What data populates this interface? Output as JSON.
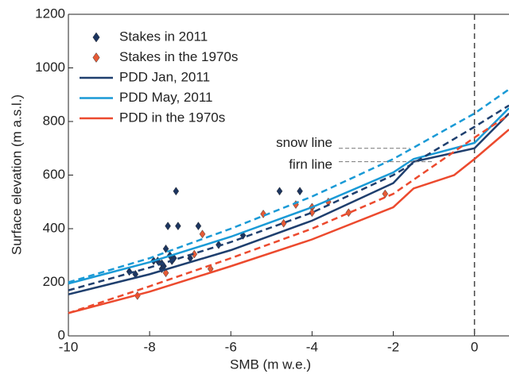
{
  "chart_data": {
    "type": "line",
    "xlabel": "SMB (m w.e.)",
    "ylabel": "Surface elevation (m a.s.l.)",
    "xlim": [
      -10,
      0.85
    ],
    "ylim": [
      0,
      1200
    ],
    "xticks": [
      -10,
      -8,
      -6,
      -4,
      -2,
      0
    ],
    "yticks": [
      0,
      200,
      400,
      600,
      800,
      1000,
      1200
    ],
    "vline": 0,
    "legend": "top-left",
    "series": [
      {
        "name": "Stakes in 2011",
        "kind": "scatter",
        "color": "#1c3560",
        "x": [
          -8.5,
          -8.35,
          -7.9,
          -7.8,
          -7.7,
          -7.7,
          -7.65,
          -7.6,
          -7.55,
          -7.5,
          -7.45,
          -7.4,
          -7.35,
          -7.3,
          -7.0,
          -6.8,
          -6.3,
          -5.7,
          -4.8,
          -4.3,
          -4.0
        ],
        "values": [
          240,
          230,
          280,
          280,
          270,
          250,
          260,
          325,
          410,
          300,
          280,
          290,
          540,
          410,
          290,
          410,
          340,
          375,
          540,
          540,
          480
        ]
      },
      {
        "name": "Stakes in the 1970s",
        "kind": "scatter",
        "color": "#e65a35",
        "x": [
          -8.3,
          -7.6,
          -6.9,
          -6.7,
          -6.5,
          -5.2,
          -4.7,
          -4.4,
          -4.0,
          -4.0,
          -3.6,
          -3.1,
          -2.2
        ],
        "values": [
          150,
          235,
          305,
          380,
          250,
          455,
          420,
          490,
          480,
          460,
          500,
          460,
          530
        ]
      },
      {
        "name": "PDD Jan, 2011",
        "kind": "solid",
        "color": "#1f3f6e",
        "x": [
          -10,
          -8,
          -6,
          -4,
          -2,
          -1.5,
          0,
          0.85
        ],
        "values": [
          155,
          230,
          320,
          430,
          570,
          650,
          700,
          830
        ]
      },
      {
        "name": "PDD May, 2011",
        "kind": "solid",
        "color": "#1a9ad6",
        "x": [
          -10,
          -8,
          -6,
          -4,
          -2,
          -1.5,
          0,
          0.85
        ],
        "values": [
          195,
          275,
          370,
          480,
          610,
          660,
          720,
          850
        ]
      },
      {
        "name": "PDD in the 1970s",
        "kind": "solid",
        "color": "#ec4a2e",
        "x": [
          -10,
          -8,
          -6,
          -4,
          -2,
          -1.5,
          -0.5,
          0,
          0.85
        ],
        "values": [
          85,
          165,
          260,
          360,
          480,
          550,
          600,
          660,
          770
        ]
      },
      {
        "kind": "dashed",
        "color": "#1f3f6e",
        "x": [
          -10,
          -8,
          -6,
          -4,
          -2,
          0,
          0.85
        ],
        "values": [
          170,
          255,
          350,
          460,
          600,
          780,
          860
        ]
      },
      {
        "kind": "dashed",
        "color": "#1a9ad6",
        "x": [
          -10,
          -8,
          -6,
          -4,
          -2,
          0,
          0.85
        ],
        "values": [
          200,
          290,
          400,
          520,
          660,
          830,
          920
        ]
      },
      {
        "kind": "dashed",
        "color": "#ec4a2e",
        "x": [
          -10,
          -8,
          -6,
          -4,
          -2,
          0,
          0.85
        ],
        "values": [
          85,
          185,
          290,
          400,
          530,
          740,
          825
        ]
      }
    ],
    "annotations": [
      {
        "text": "snow line",
        "y": 700,
        "x": -1.6
      },
      {
        "text": "firn line",
        "y": 650,
        "x": -1.0
      }
    ]
  }
}
